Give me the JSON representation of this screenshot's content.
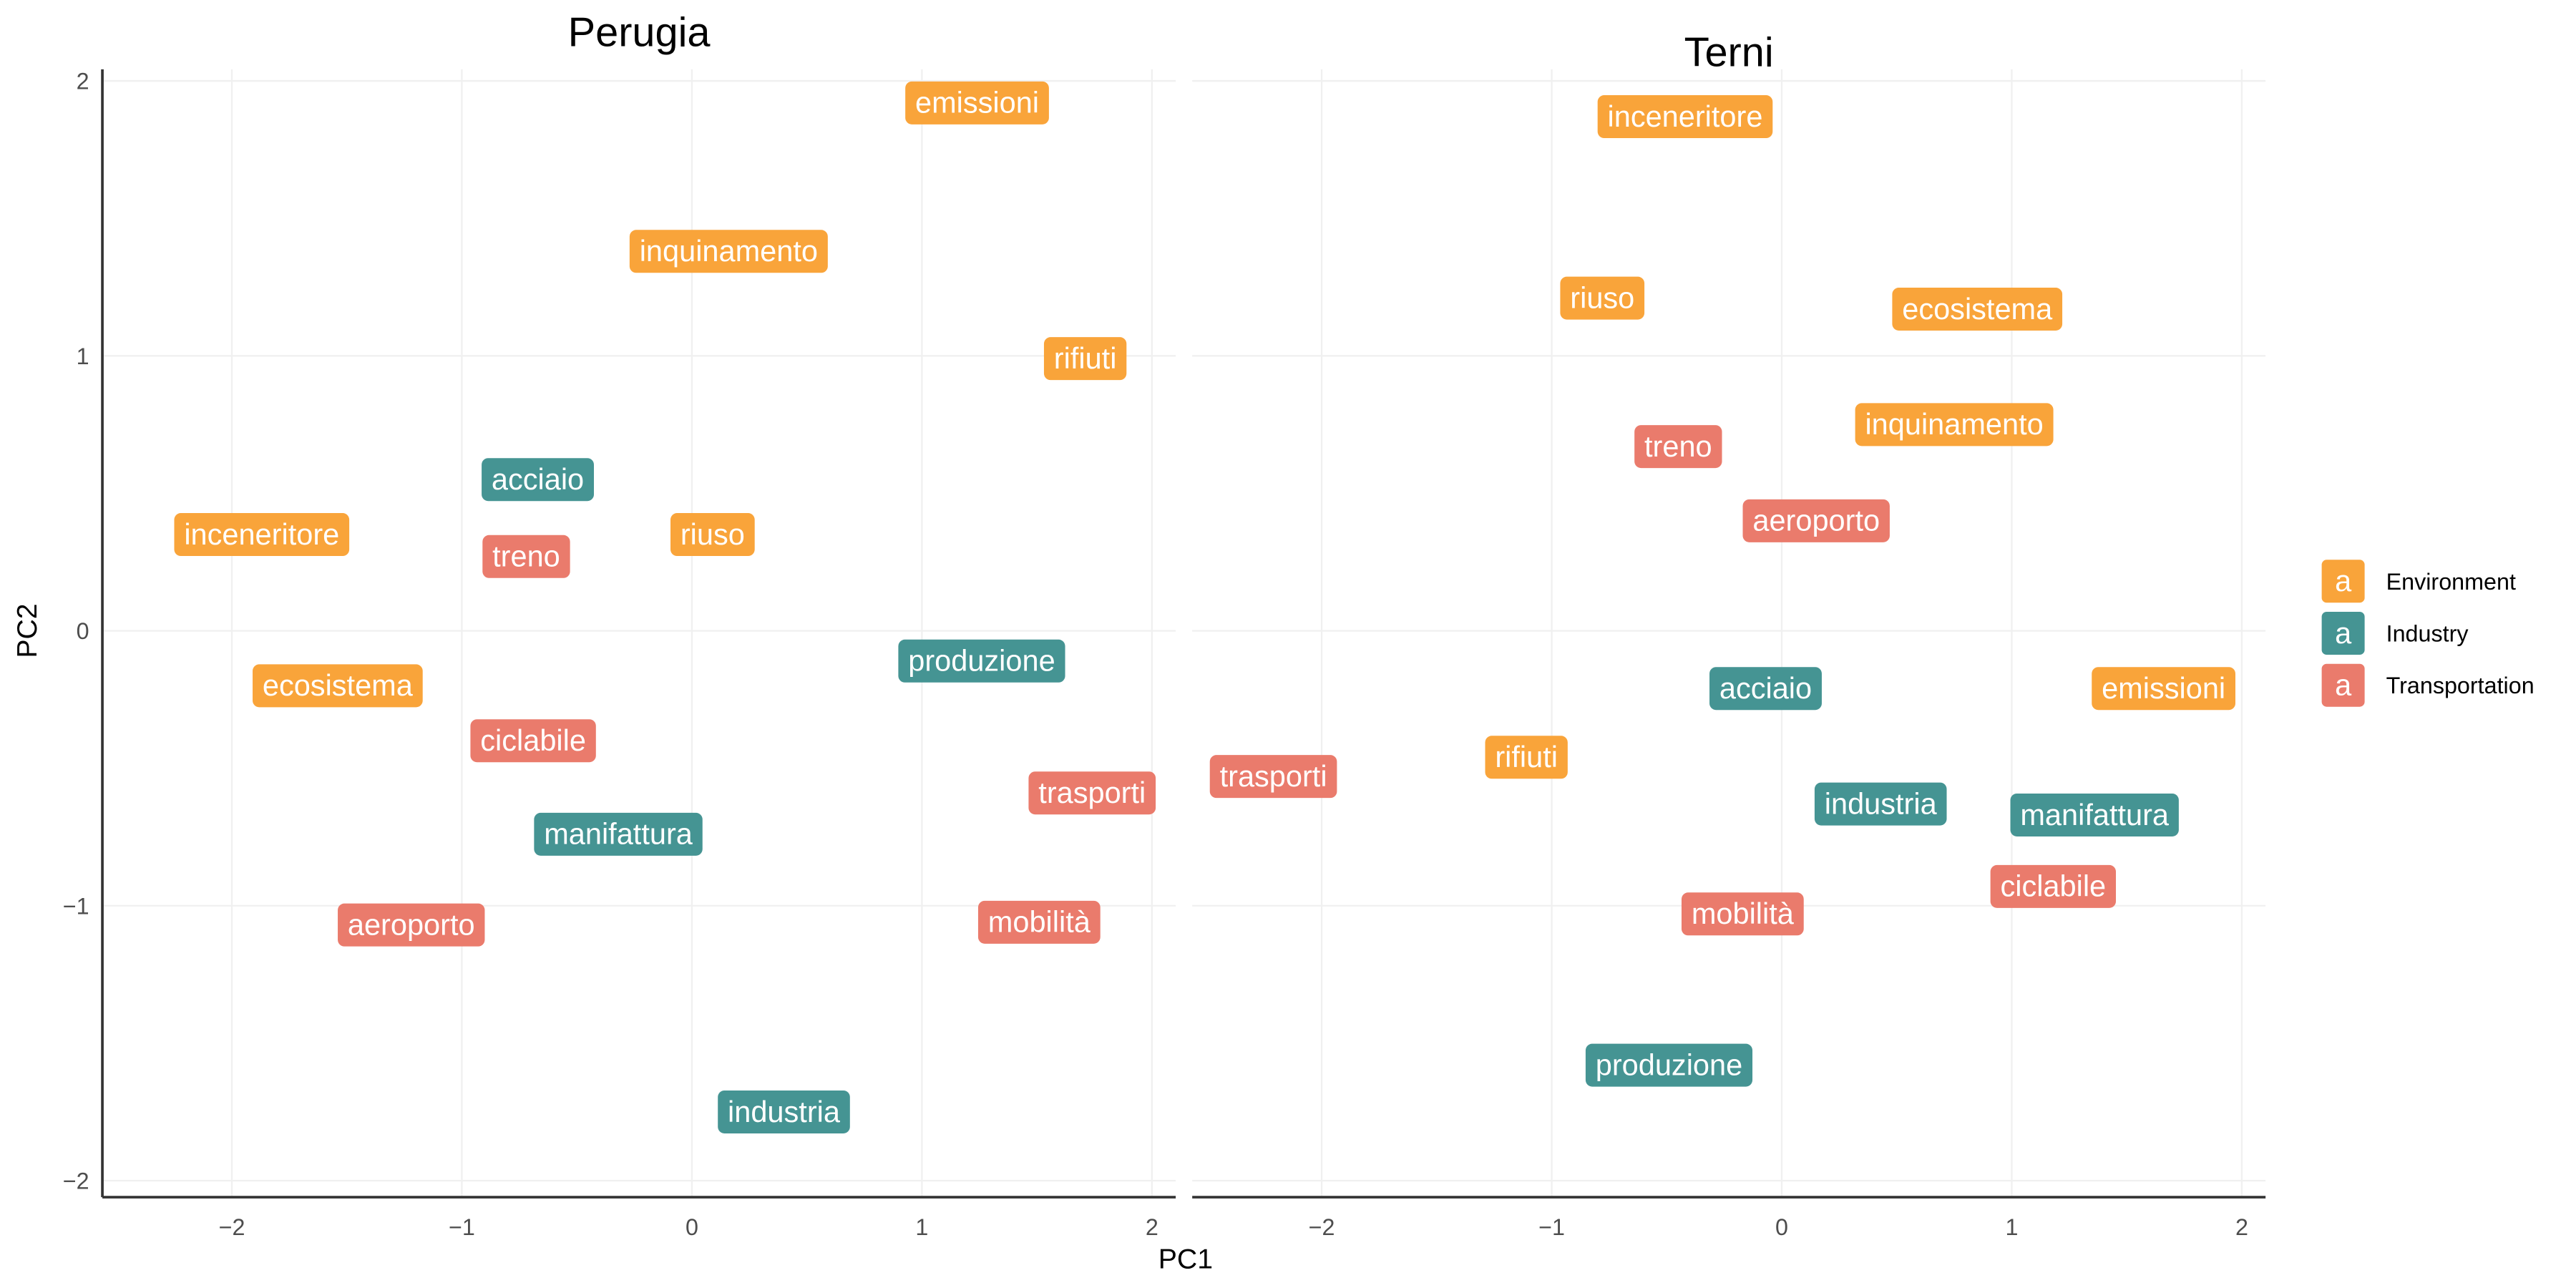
{
  "chart_data": {
    "type": "scatter",
    "subtype": "text-label scatter, faceted",
    "xlabel": "PC1",
    "ylabel": "PC2",
    "xlim": [
      -2.6,
      2.1
    ],
    "ylim": [
      -2.1,
      2.05
    ],
    "x_ticks": [
      "−2",
      "−1",
      "0",
      "1",
      "2"
    ],
    "y_ticks": [
      "2",
      "1",
      "0",
      "−1",
      "−2"
    ],
    "grid": true,
    "legend": {
      "placement": "right",
      "glyph": "a",
      "entries": [
        {
          "name": "Environment",
          "color": "#F9A43A"
        },
        {
          "name": "Industry",
          "color": "#459493"
        },
        {
          "name": "Transportation",
          "color": "#EA7B6C"
        }
      ]
    },
    "panels": [
      {
        "title": "Perugia",
        "points": [
          {
            "label": "emissioni",
            "group": "Environment",
            "x": 1.24,
            "y": 1.92
          },
          {
            "label": "inquinamento",
            "group": "Environment",
            "x": 0.16,
            "y": 1.38
          },
          {
            "label": "rifiuti",
            "group": "Environment",
            "x": 1.71,
            "y": 0.99
          },
          {
            "label": "acciaio",
            "group": "Industry",
            "x": -0.67,
            "y": 0.55
          },
          {
            "label": "inceneritore",
            "group": "Environment",
            "x": -1.87,
            "y": 0.35
          },
          {
            "label": "treno",
            "group": "Transportation",
            "x": -0.72,
            "y": 0.27
          },
          {
            "label": "riuso",
            "group": "Environment",
            "x": 0.09,
            "y": 0.35
          },
          {
            "label": "produzione",
            "group": "Industry",
            "x": 1.26,
            "y": -0.11
          },
          {
            "label": "ecosistema",
            "group": "Environment",
            "x": -1.54,
            "y": -0.2
          },
          {
            "label": "ciclabile",
            "group": "Transportation",
            "x": -0.69,
            "y": -0.4
          },
          {
            "label": "trasporti",
            "group": "Transportation",
            "x": 1.74,
            "y": -0.59
          },
          {
            "label": "manifattura",
            "group": "Industry",
            "x": -0.32,
            "y": -0.74
          },
          {
            "label": "aeroporto",
            "group": "Transportation",
            "x": -1.22,
            "y": -1.07
          },
          {
            "label": "mobilità",
            "group": "Transportation",
            "x": 1.51,
            "y": -1.06
          },
          {
            "label": "industria",
            "group": "Industry",
            "x": 0.4,
            "y": -1.75
          }
        ]
      },
      {
        "title": "Terni",
        "points": [
          {
            "label": "inceneritore",
            "group": "Environment",
            "x": -0.42,
            "y": 1.87
          },
          {
            "label": "riuso",
            "group": "Environment",
            "x": -0.78,
            "y": 1.21
          },
          {
            "label": "ecosistema",
            "group": "Environment",
            "x": 0.85,
            "y": 1.17
          },
          {
            "label": "inquinamento",
            "group": "Environment",
            "x": 0.75,
            "y": 0.75
          },
          {
            "label": "treno",
            "group": "Transportation",
            "x": -0.45,
            "y": 0.67
          },
          {
            "label": "aeroporto",
            "group": "Transportation",
            "x": 0.15,
            "y": 0.4
          },
          {
            "label": "acciaio",
            "group": "Industry",
            "x": -0.07,
            "y": -0.21
          },
          {
            "label": "emissioni",
            "group": "Environment",
            "x": 1.66,
            "y": -0.21
          },
          {
            "label": "trasporti",
            "group": "Transportation",
            "x": -2.21,
            "y": -0.53
          },
          {
            "label": "rifiuti",
            "group": "Environment",
            "x": -1.11,
            "y": -0.46
          },
          {
            "label": "industria",
            "group": "Industry",
            "x": 0.43,
            "y": -0.63
          },
          {
            "label": "manifattura",
            "group": "Industry",
            "x": 1.36,
            "y": -0.67
          },
          {
            "label": "ciclabile",
            "group": "Transportation",
            "x": 1.18,
            "y": -0.93
          },
          {
            "label": "mobilità",
            "group": "Transportation",
            "x": -0.17,
            "y": -1.03
          },
          {
            "label": "produzione",
            "group": "Industry",
            "x": -0.49,
            "y": -1.58
          }
        ]
      }
    ]
  }
}
